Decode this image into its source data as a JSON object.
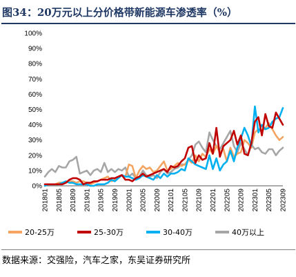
{
  "title": "图34：20万元以上分价格带新能源车渗透率（%）",
  "source": "数据来源：交强险，汽车之家，东吴证券研究所",
  "chart_data": {
    "type": "line",
    "ylim": [
      0,
      100
    ],
    "yticks": [
      "0%",
      "10%",
      "20%",
      "30%",
      "40%",
      "50%",
      "60%",
      "70%",
      "80%",
      "90%",
      "100%"
    ],
    "x": [
      "201801",
      "201802",
      "201803",
      "201804",
      "201805",
      "201806",
      "201807",
      "201808",
      "201809",
      "201810",
      "201811",
      "201812",
      "201901",
      "201902",
      "201903",
      "201904",
      "201905",
      "201906",
      "201907",
      "201908",
      "201909",
      "201910",
      "201911",
      "201912",
      "202001",
      "202002",
      "202003",
      "202004",
      "202005",
      "202006",
      "202007",
      "202008",
      "202009",
      "202010",
      "202011",
      "202012",
      "202101",
      "202102",
      "202103",
      "202104",
      "202105",
      "202106",
      "202107",
      "202108",
      "202109",
      "202110",
      "202111",
      "202112",
      "202201",
      "202202",
      "202203",
      "202204",
      "202205",
      "202206",
      "202207",
      "202208",
      "202209",
      "202210",
      "202211",
      "202212",
      "202301",
      "202302",
      "202303",
      "202304",
      "202305",
      "202306",
      "202307",
      "202308",
      "202309"
    ],
    "xticks": [
      "201801",
      "201805",
      "201809",
      "201901",
      "201905",
      "201909",
      "202001",
      "202005",
      "202009",
      "202101",
      "202105",
      "202109",
      "202201",
      "202205",
      "202209",
      "202301",
      "202305",
      "202309"
    ],
    "grid": false,
    "legend": "bottom",
    "series": [
      {
        "name": "20-25万",
        "color": "#f4a460",
        "values": [
          1,
          1,
          1,
          1,
          2,
          2,
          2,
          3,
          3,
          2,
          3,
          3,
          2,
          1,
          2,
          3,
          4,
          5,
          6,
          3,
          4,
          5,
          7,
          6,
          14,
          13,
          5,
          10,
          13,
          11,
          12,
          9,
          10,
          13,
          16,
          10,
          11,
          13,
          15,
          13,
          14,
          17,
          15,
          20,
          16,
          21,
          19,
          24,
          21,
          26,
          22,
          24,
          16,
          25,
          19,
          21,
          22,
          30,
          28,
          25,
          35,
          37,
          36,
          38,
          41,
          37,
          33,
          30,
          32
        ]
      },
      {
        "name": "25-30万",
        "color": "#c00000",
        "values": [
          1,
          1,
          1,
          1,
          1,
          1,
          2,
          4,
          5,
          5,
          4,
          1,
          2,
          2,
          3,
          3,
          4,
          4,
          4,
          5,
          5,
          6,
          7,
          4,
          4,
          3,
          5,
          6,
          8,
          6,
          7,
          8,
          9,
          10,
          11,
          9,
          13,
          12,
          13,
          16,
          18,
          25,
          26,
          15,
          20,
          17,
          18,
          28,
          21,
          38,
          19,
          26,
          28,
          30,
          36,
          27,
          33,
          21,
          20,
          28,
          42,
          45,
          33,
          47,
          39,
          38,
          48,
          44,
          40
        ]
      },
      {
        "name": "30-40万",
        "color": "#00b0f0",
        "values": [
          0,
          1,
          1,
          1,
          1,
          2,
          3,
          2,
          2,
          1,
          1,
          1,
          1,
          0,
          0,
          1,
          1,
          1,
          2,
          4,
          3,
          5,
          7,
          6,
          6,
          5,
          4,
          5,
          7,
          6,
          5,
          4,
          7,
          5,
          8,
          6,
          8,
          8,
          9,
          11,
          10,
          18,
          16,
          14,
          13,
          12,
          11,
          20,
          11,
          18,
          10,
          14,
          16,
          23,
          16,
          25,
          31,
          38,
          33,
          26,
          52,
          35,
          40,
          37,
          38,
          42,
          44,
          45,
          51
        ]
      },
      {
        "name": "40万以上",
        "color": "#a6a6a6",
        "values": [
          6,
          9,
          11,
          9,
          13,
          12,
          12,
          16,
          17,
          19,
          8,
          9,
          10,
          7,
          10,
          11,
          9,
          15,
          9,
          11,
          9,
          11,
          10,
          12,
          6,
          8,
          5,
          6,
          10,
          7,
          6,
          7,
          5,
          9,
          11,
          8,
          9,
          11,
          12,
          14,
          14,
          17,
          20,
          27,
          29,
          25,
          22,
          35,
          30,
          26,
          24,
          28,
          32,
          36,
          26,
          22,
          28,
          24,
          20,
          27,
          24,
          25,
          22,
          21,
          24,
          24,
          20,
          23,
          25
        ]
      }
    ]
  }
}
